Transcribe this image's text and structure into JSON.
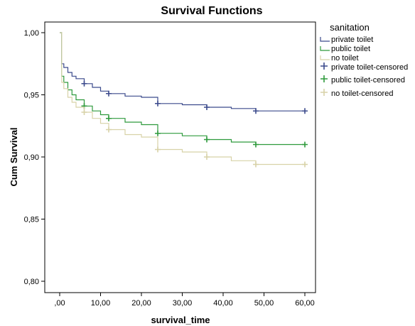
{
  "chart_data": {
    "type": "line",
    "title": "Survival Functions",
    "xlabel": "survival_time",
    "ylabel": "Cum Survival",
    "xlim": [
      0,
      60
    ],
    "ylim": [
      0.8,
      1.0
    ],
    "x_ticks": [
      ",00",
      "10,00",
      "20,00",
      "30,00",
      "40,00",
      "50,00",
      "60,00"
    ],
    "y_ticks": [
      "1,00",
      "0,95",
      "0,90",
      "0,85",
      "0,80"
    ],
    "grid": false,
    "legend_title": "sanitation",
    "legend_position": "right",
    "legend_entries": [
      "private toilet",
      "public toilet",
      "no toilet",
      "private toilet-censored",
      "public toilet-censored",
      "no toilet-censored"
    ],
    "series": [
      {
        "name": "private toilet",
        "color": "#3b4a8c",
        "x": [
          0,
          0.5,
          1,
          2,
          3,
          4,
          6,
          8,
          10,
          12,
          16,
          20,
          24,
          30,
          36,
          42,
          48,
          54,
          60
        ],
        "y": [
          1.0,
          0.975,
          0.972,
          0.968,
          0.965,
          0.963,
          0.959,
          0.956,
          0.953,
          0.951,
          0.949,
          0.948,
          0.943,
          0.942,
          0.94,
          0.939,
          0.937,
          0.937,
          0.937
        ],
        "censored_x": [
          6,
          12,
          24,
          36,
          48,
          60
        ],
        "censored_y": [
          0.959,
          0.951,
          0.943,
          0.94,
          0.937,
          0.937
        ]
      },
      {
        "name": "public toilet",
        "color": "#2e9a3c",
        "x": [
          0,
          0.5,
          1,
          2,
          3,
          4,
          6,
          8,
          10,
          12,
          16,
          20,
          24,
          30,
          36,
          42,
          48,
          54,
          60
        ],
        "y": [
          1.0,
          0.965,
          0.96,
          0.954,
          0.95,
          0.946,
          0.941,
          0.937,
          0.934,
          0.931,
          0.928,
          0.926,
          0.919,
          0.917,
          0.914,
          0.912,
          0.91,
          0.91,
          0.91
        ],
        "censored_x": [
          6,
          12,
          24,
          36,
          48,
          60
        ],
        "censored_y": [
          0.941,
          0.931,
          0.919,
          0.914,
          0.91,
          0.91
        ]
      },
      {
        "name": "no toilet",
        "color": "#d8d2a8",
        "x": [
          0,
          0.5,
          1,
          2,
          3,
          4,
          6,
          8,
          10,
          12,
          16,
          20,
          24,
          30,
          36,
          42,
          48,
          54,
          60
        ],
        "y": [
          1.0,
          0.96,
          0.955,
          0.948,
          0.944,
          0.94,
          0.936,
          0.931,
          0.927,
          0.922,
          0.918,
          0.916,
          0.906,
          0.904,
          0.9,
          0.897,
          0.894,
          0.894,
          0.894
        ],
        "censored_x": [
          6,
          12,
          24,
          36,
          48,
          60
        ],
        "censored_y": [
          0.936,
          0.922,
          0.906,
          0.9,
          0.894,
          0.894
        ]
      }
    ]
  }
}
